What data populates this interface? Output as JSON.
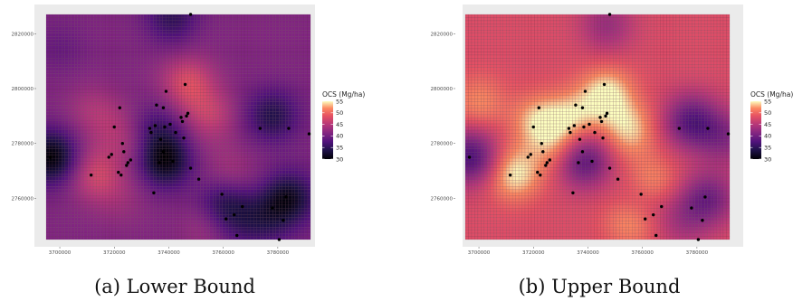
{
  "chart_data": [
    {
      "type": "heatmap",
      "caption": "(a) Lower Bound",
      "legend_title": "OCS (Mg/ha)",
      "colorbar_ticks": [
        55,
        50,
        45,
        40,
        35,
        30
      ],
      "zlim": [
        30,
        55
      ],
      "x_ticks": [
        3700000,
        3720000,
        3740000,
        3760000,
        3780000
      ],
      "y_ticks": [
        2820000,
        2800000,
        2780000,
        2760000
      ],
      "xlim": [
        3695000,
        3792000
      ],
      "ylim": [
        2745000,
        2827000
      ],
      "grid": true,
      "legend_position": "right",
      "baseline": 41,
      "hotspots": [
        {
          "x": 3713000,
          "y": 2769000,
          "value": 47
        },
        {
          "x": 3721000,
          "y": 2785000,
          "value": 44
        },
        {
          "x": 3747000,
          "y": 2802000,
          "value": 48
        },
        {
          "x": 3755000,
          "y": 2790000,
          "value": 46
        },
        {
          "x": 3730000,
          "y": 2778000,
          "value": 44
        },
        {
          "x": 3712000,
          "y": 2792000,
          "value": 44
        },
        {
          "x": 3762000,
          "y": 2768000,
          "value": 45
        },
        {
          "x": 3722000,
          "y": 2760000,
          "value": 43
        },
        {
          "x": 3756000,
          "y": 2750000,
          "value": 45
        },
        {
          "x": 3697000,
          "y": 2775000,
          "value": 30
        },
        {
          "x": 3738000,
          "y": 2774000,
          "value": 30
        },
        {
          "x": 3784000,
          "y": 2760000,
          "value": 32
        },
        {
          "x": 3778000,
          "y": 2790000,
          "value": 34
        },
        {
          "x": 3741000,
          "y": 2826000,
          "value": 35
        },
        {
          "x": 3760000,
          "y": 2760000,
          "value": 35
        },
        {
          "x": 3735000,
          "y": 2785000,
          "value": 36
        },
        {
          "x": 3762000,
          "y": 2752000,
          "value": 36
        },
        {
          "x": 3775000,
          "y": 2752000,
          "value": 36
        },
        {
          "x": 3700000,
          "y": 2815000,
          "value": 39
        }
      ],
      "points": [
        [
          3696500,
          2775000
        ],
        [
          3711500,
          2768500
        ],
        [
          3718000,
          2775000
        ],
        [
          3719000,
          2776000
        ],
        [
          3720000,
          2786000
        ],
        [
          3721500,
          2769500
        ],
        [
          3722000,
          2793000
        ],
        [
          3723000,
          2780000
        ],
        [
          3723500,
          2777000
        ],
        [
          3724500,
          2772000
        ],
        [
          3725000,
          2773000
        ],
        [
          3726000,
          2774000
        ],
        [
          3722500,
          2768500
        ],
        [
          3733000,
          2785500
        ],
        [
          3733500,
          2784000
        ],
        [
          3735000,
          2786500
        ],
        [
          3735500,
          2794000
        ],
        [
          3736500,
          2773000
        ],
        [
          3737000,
          2781500
        ],
        [
          3738000,
          2793000
        ],
        [
          3738500,
          2786000
        ],
        [
          3739000,
          2799000
        ],
        [
          3740500,
          2787000
        ],
        [
          3741500,
          2773500
        ],
        [
          3742500,
          2784000
        ],
        [
          3744500,
          2789500
        ],
        [
          3745000,
          2788000
        ],
        [
          3745500,
          2782000
        ],
        [
          3746000,
          2801500
        ],
        [
          3746500,
          2790000
        ],
        [
          3747000,
          2791000
        ],
        [
          3734500,
          2762000
        ],
        [
          3738000,
          2777000
        ],
        [
          3748000,
          2771000
        ],
        [
          3751000,
          2767000
        ],
        [
          3759500,
          2761500
        ],
        [
          3761000,
          2752500
        ],
        [
          3764000,
          2754000
        ],
        [
          3765000,
          2746500
        ],
        [
          3767000,
          2757000
        ],
        [
          3773500,
          2785500
        ],
        [
          3778000,
          2756500
        ],
        [
          3780500,
          2745000
        ],
        [
          3782000,
          2752000
        ],
        [
          3784000,
          2785500
        ],
        [
          3791500,
          2783500
        ],
        [
          3748000,
          2827000
        ],
        [
          3783000,
          2760500
        ]
      ]
    },
    {
      "type": "heatmap",
      "caption": "(b) Upper Bound",
      "legend_title": "OCS (Mg/ha)",
      "colorbar_ticks": [
        55,
        50,
        45,
        40,
        35,
        30
      ],
      "zlim": [
        30,
        55
      ],
      "x_ticks": [
        3700000,
        3720000,
        3740000,
        3760000,
        3780000
      ],
      "y_ticks": [
        2820000,
        2800000,
        2780000,
        2760000
      ],
      "xlim": [
        3695000,
        3792000
      ],
      "ylim": [
        2745000,
        2827000
      ],
      "grid": true,
      "legend_position": "right",
      "baseline": 48,
      "hotspots": [
        {
          "x": 3713000,
          "y": 2769000,
          "value": 55
        },
        {
          "x": 3722000,
          "y": 2788000,
          "value": 54
        },
        {
          "x": 3747000,
          "y": 2798000,
          "value": 55
        },
        {
          "x": 3755000,
          "y": 2785000,
          "value": 54
        },
        {
          "x": 3730000,
          "y": 2778000,
          "value": 53
        },
        {
          "x": 3763000,
          "y": 2765000,
          "value": 54
        },
        {
          "x": 3756000,
          "y": 2752000,
          "value": 53
        },
        {
          "x": 3735000,
          "y": 2790000,
          "value": 53
        },
        {
          "x": 3700000,
          "y": 2795000,
          "value": 52
        },
        {
          "x": 3697000,
          "y": 2775000,
          "value": 37
        },
        {
          "x": 3738000,
          "y": 2774000,
          "value": 37
        },
        {
          "x": 3784000,
          "y": 2760000,
          "value": 40
        },
        {
          "x": 3778000,
          "y": 2788000,
          "value": 38
        },
        {
          "x": 3747000,
          "y": 2823000,
          "value": 43
        },
        {
          "x": 3760000,
          "y": 2760000,
          "value": 43
        },
        {
          "x": 3775000,
          "y": 2752000,
          "value": 44
        },
        {
          "x": 3790000,
          "y": 2782000,
          "value": 42
        }
      ],
      "points": [
        [
          3696500,
          2775000
        ],
        [
          3711500,
          2768500
        ],
        [
          3718000,
          2775000
        ],
        [
          3719000,
          2776000
        ],
        [
          3720000,
          2786000
        ],
        [
          3721500,
          2769500
        ],
        [
          3722000,
          2793000
        ],
        [
          3723000,
          2780000
        ],
        [
          3723500,
          2777000
        ],
        [
          3724500,
          2772000
        ],
        [
          3725000,
          2773000
        ],
        [
          3726000,
          2774000
        ],
        [
          3722500,
          2768500
        ],
        [
          3733000,
          2785500
        ],
        [
          3733500,
          2784000
        ],
        [
          3735000,
          2786500
        ],
        [
          3735500,
          2794000
        ],
        [
          3736500,
          2773000
        ],
        [
          3737000,
          2781500
        ],
        [
          3738000,
          2793000
        ],
        [
          3738500,
          2786000
        ],
        [
          3739000,
          2799000
        ],
        [
          3740500,
          2787000
        ],
        [
          3741500,
          2773500
        ],
        [
          3742500,
          2784000
        ],
        [
          3744500,
          2789500
        ],
        [
          3745000,
          2788000
        ],
        [
          3745500,
          2782000
        ],
        [
          3746000,
          2801500
        ],
        [
          3746500,
          2790000
        ],
        [
          3747000,
          2791000
        ],
        [
          3734500,
          2762000
        ],
        [
          3738000,
          2777000
        ],
        [
          3748000,
          2771000
        ],
        [
          3751000,
          2767000
        ],
        [
          3759500,
          2761500
        ],
        [
          3761000,
          2752500
        ],
        [
          3764000,
          2754000
        ],
        [
          3765000,
          2746500
        ],
        [
          3767000,
          2757000
        ],
        [
          3773500,
          2785500
        ],
        [
          3778000,
          2756500
        ],
        [
          3780500,
          2745000
        ],
        [
          3782000,
          2752000
        ],
        [
          3784000,
          2785500
        ],
        [
          3791500,
          2783500
        ],
        [
          3748000,
          2827000
        ],
        [
          3783000,
          2760500
        ]
      ]
    }
  ]
}
